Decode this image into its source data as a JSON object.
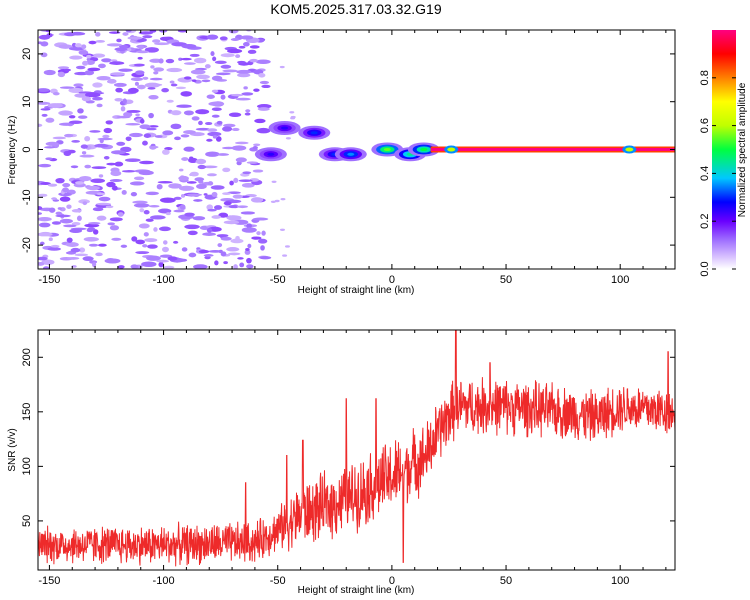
{
  "chart_data": [
    {
      "type": "heatmap",
      "title": "KOM5.2025.317.03.32.G19",
      "xlabel": "Height of straight line (km)",
      "ylabel": "Frequency (Hz)",
      "xlim": [
        -155,
        124
      ],
      "ylim": [
        -25,
        25
      ],
      "xticks": [
        -150,
        -100,
        -50,
        0,
        50,
        100
      ],
      "yticks": [
        -20,
        -10,
        0,
        10,
        20
      ],
      "grid": false,
      "colorbar": {
        "label": "Normalized spectral amplitude",
        "range": [
          0,
          1
        ],
        "ticks": [
          0.0,
          0.2,
          0.4,
          0.6,
          0.8
        ],
        "colors": [
          "#ffffff",
          "#b48cff",
          "#6a00ff",
          "#0000ff",
          "#00c8ff",
          "#00ff40",
          "#ffff00",
          "#ff8000",
          "#ff0000",
          "#ff0080"
        ]
      },
      "features": {
        "scattered_noise_region_km": [
          -155,
          -55
        ],
        "scattered_noise_amplitude": 0.1,
        "blobs": [
          {
            "x": -53,
            "y": -1,
            "amp": 0.25
          },
          {
            "x": -47,
            "y": 4.5,
            "amp": 0.25
          },
          {
            "x": -34,
            "y": 3.5,
            "amp": 0.3
          },
          {
            "x": -25,
            "y": -1,
            "amp": 0.3
          },
          {
            "x": -18,
            "y": -1,
            "amp": 0.35
          },
          {
            "x": -2,
            "y": 0,
            "amp": 0.55
          },
          {
            "x": 8,
            "y": -1,
            "amp": 0.45
          },
          {
            "x": 14,
            "y": 0,
            "amp": 0.5
          }
        ],
        "carrier_line": {
          "x_start": 17,
          "x_end": 124,
          "y": 0,
          "amp": 1.0
        },
        "carrier_markers": [
          {
            "x": 26,
            "y": 0
          },
          {
            "x": 104,
            "y": 0
          }
        ]
      }
    },
    {
      "type": "line",
      "xlabel": "Height of straight line (km)",
      "ylabel": "SNR (v/v)",
      "xlim": [
        -155,
        124
      ],
      "ylim": [
        5,
        225
      ],
      "xticks": [
        -150,
        -100,
        -50,
        0,
        50,
        100
      ],
      "yticks": [
        50,
        100,
        150,
        200
      ],
      "grid": false,
      "series_color": "#ee2a2a",
      "trend": {
        "x": [
          -155,
          -100,
          -60,
          -50,
          -40,
          -20,
          0,
          15,
          20,
          26,
          30,
          50,
          75,
          90,
          100,
          124
        ],
        "y": [
          28,
          28,
          30,
          42,
          55,
          70,
          90,
          110,
          130,
          150,
          155,
          155,
          150,
          145,
          155,
          150
        ]
      },
      "noise_amplitude": [
        {
          "x": -155,
          "amp": 14
        },
        {
          "x": -50,
          "amp": 16
        },
        {
          "x": -40,
          "amp": 24
        },
        {
          "x": 0,
          "amp": 28
        },
        {
          "x": 30,
          "amp": 22
        },
        {
          "x": 124,
          "amp": 18
        }
      ],
      "peaks": [
        {
          "x": -64,
          "y": 85
        },
        {
          "x": -46,
          "y": 110
        },
        {
          "x": -39,
          "y": 124
        },
        {
          "x": -20,
          "y": 162
        },
        {
          "x": -7,
          "y": 162
        },
        {
          "x": 5,
          "y": 12
        },
        {
          "x": 28,
          "y": 225
        },
        {
          "x": 43,
          "y": 195
        },
        {
          "x": 121,
          "y": 205
        }
      ]
    }
  ]
}
